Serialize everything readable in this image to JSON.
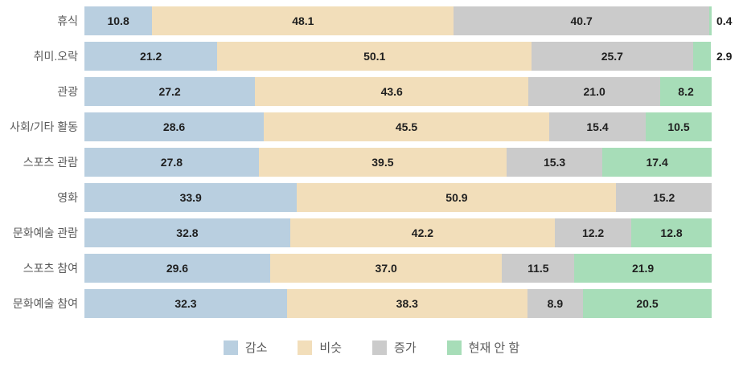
{
  "chart_data": {
    "type": "bar",
    "orientation": "horizontal",
    "stacked": true,
    "unit": "percent",
    "title": "",
    "xlabel": "",
    "ylabel": "",
    "xlim": [
      0,
      100
    ],
    "grid": false,
    "legend_position": "bottom",
    "value_labels": true,
    "outside_label_threshold": 4,
    "categories": [
      "휴식",
      "취미.오락",
      "관광",
      "사회/기타 활동",
      "스포츠 관람",
      "영화",
      "문화예술 관람",
      "스포츠 참여",
      "문화예술 참여"
    ],
    "series": [
      {
        "name": "감소",
        "color": "#b9cfe0",
        "values": [
          10.8,
          21.2,
          27.2,
          28.6,
          27.8,
          33.9,
          32.8,
          29.6,
          32.3
        ]
      },
      {
        "name": "비슷",
        "color": "#f2deba",
        "values": [
          48.1,
          50.1,
          43.6,
          45.5,
          39.5,
          50.9,
          42.2,
          37.0,
          38.3
        ]
      },
      {
        "name": "증가",
        "color": "#cbcbcb",
        "values": [
          40.7,
          25.7,
          21.0,
          15.4,
          15.3,
          15.2,
          12.2,
          11.5,
          8.9
        ]
      },
      {
        "name": "현재 안 함",
        "color": "#a7ddb8",
        "values": [
          0.4,
          2.9,
          8.2,
          10.5,
          17.4,
          0,
          12.8,
          21.9,
          20.5
        ]
      }
    ]
  },
  "legend": {
    "items": [
      {
        "label": "감소",
        "color": "#b9cfe0"
      },
      {
        "label": "비슷",
        "color": "#f2deba"
      },
      {
        "label": "증가",
        "color": "#cbcbcb"
      },
      {
        "label": "현재 안 함",
        "color": "#a7ddb8"
      }
    ]
  },
  "text_colors": {
    "category_label": "#595959",
    "value_label": "#1f1f1f",
    "legend_label": "#595959"
  }
}
